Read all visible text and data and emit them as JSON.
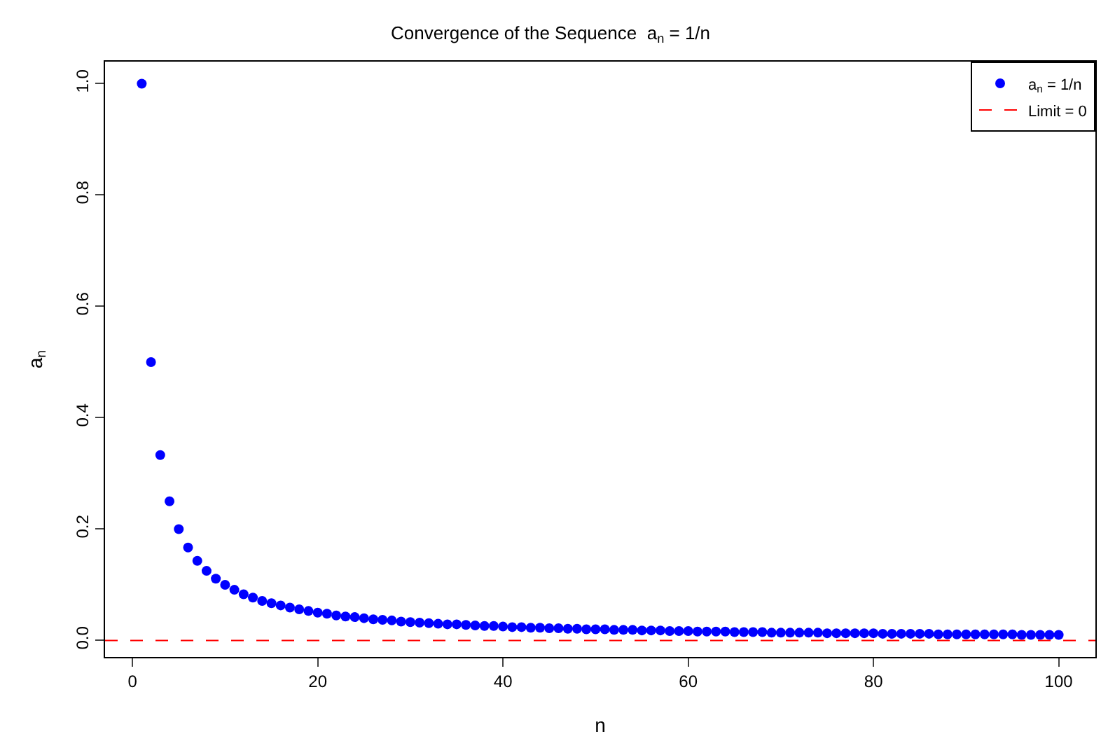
{
  "chart_data": {
    "type": "scatter",
    "title": "Convergence of the Sequence  a$_{n}$ = 1/n",
    "xlabel": "n",
    "ylabel": "a$_{n}$",
    "x": [
      1,
      2,
      3,
      4,
      5,
      6,
      7,
      8,
      9,
      10,
      11,
      12,
      13,
      14,
      15,
      16,
      17,
      18,
      19,
      20,
      21,
      22,
      23,
      24,
      25,
      26,
      27,
      28,
      29,
      30,
      31,
      32,
      33,
      34,
      35,
      36,
      37,
      38,
      39,
      40,
      41,
      42,
      43,
      44,
      45,
      46,
      47,
      48,
      49,
      50,
      51,
      52,
      53,
      54,
      55,
      56,
      57,
      58,
      59,
      60,
      61,
      62,
      63,
      64,
      65,
      66,
      67,
      68,
      69,
      70,
      71,
      72,
      73,
      74,
      75,
      76,
      77,
      78,
      79,
      80,
      81,
      82,
      83,
      84,
      85,
      86,
      87,
      88,
      89,
      90,
      91,
      92,
      93,
      94,
      95,
      96,
      97,
      98,
      99,
      100
    ],
    "series": [
      {
        "name": "a$_{n}$ = 1/n",
        "color": "#0000ff",
        "values": [
          1,
          0.5,
          0.333,
          0.25,
          0.2,
          0.167,
          0.143,
          0.125,
          0.111,
          0.1,
          0.091,
          0.083,
          0.077,
          0.071,
          0.067,
          0.063,
          0.059,
          0.056,
          0.053,
          0.05,
          0.048,
          0.045,
          0.043,
          0.042,
          0.04,
          0.038,
          0.037,
          0.036,
          0.034,
          0.033,
          0.032,
          0.031,
          0.03,
          0.029,
          0.029,
          0.028,
          0.027,
          0.026,
          0.026,
          0.025,
          0.024,
          0.024,
          0.023,
          0.023,
          0.022,
          0.022,
          0.021,
          0.021,
          0.02,
          0.02,
          0.02,
          0.019,
          0.019,
          0.019,
          0.018,
          0.018,
          0.018,
          0.017,
          0.017,
          0.017,
          0.016,
          0.016,
          0.016,
          0.016,
          0.015,
          0.015,
          0.015,
          0.015,
          0.014,
          0.014,
          0.014,
          0.014,
          0.014,
          0.014,
          0.013,
          0.013,
          0.013,
          0.013,
          0.013,
          0.013,
          0.012,
          0.012,
          0.012,
          0.012,
          0.012,
          0.012,
          0.011,
          0.011,
          0.011,
          0.011,
          0.011,
          0.011,
          0.011,
          0.011,
          0.011,
          0.01,
          0.01,
          0.01,
          0.01,
          0.01
        ]
      }
    ],
    "ref_lines": [
      {
        "axis": "y",
        "value": 0,
        "label": "Limit = 0",
        "color": "#ff0000",
        "line_style": "dashed"
      }
    ],
    "xlim": [
      -2.96,
      103.96
    ],
    "xticks": [
      0,
      20,
      40,
      60,
      80,
      100
    ],
    "ylim": [
      -0.0296,
      1.0396
    ],
    "yticks": [
      {
        "value": 0,
        "label": "0.0"
      },
      0.2,
      0.4,
      0.6,
      0.8,
      {
        "value": 1,
        "label": "1.0"
      }
    ],
    "grid": false,
    "legend": "top right",
    "marker": "circle"
  }
}
